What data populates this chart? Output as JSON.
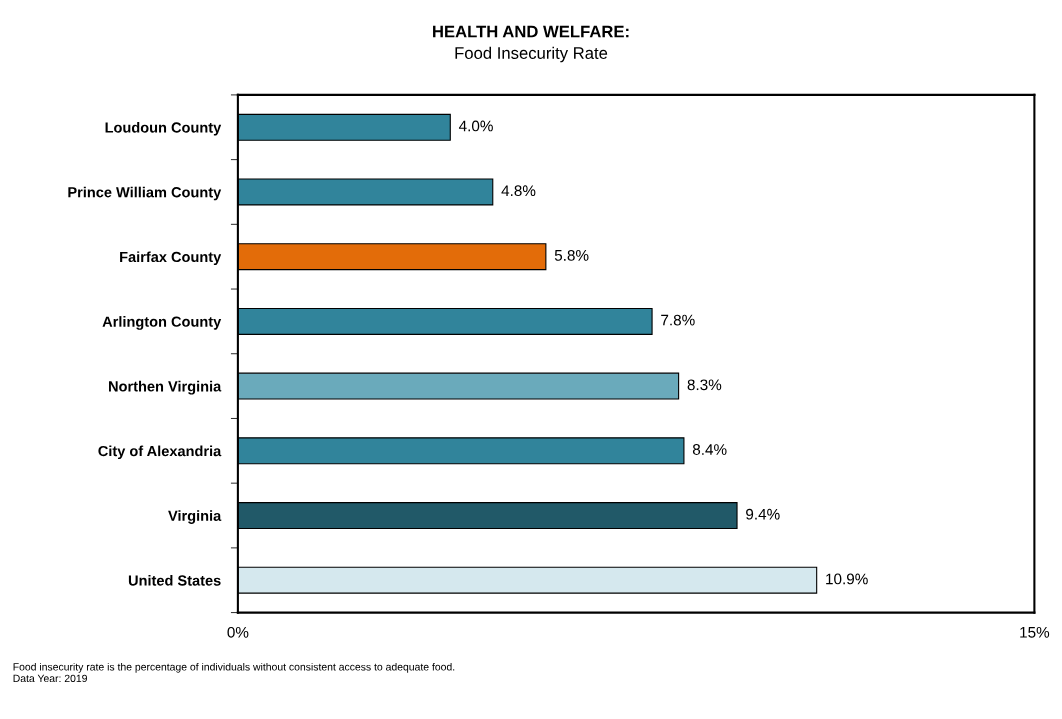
{
  "chart_data": {
    "type": "bar",
    "orientation": "horizontal",
    "title": "HEALTH AND WELFARE:",
    "subtitle": "Food Insecurity Rate",
    "categories": [
      "Loudoun County",
      "Prince William County",
      "Fairfax County",
      "Arlington County",
      "Northen Virginia",
      "City of Alexandria",
      "Virginia",
      "United States"
    ],
    "values": [
      4.0,
      4.8,
      5.8,
      7.8,
      8.3,
      8.4,
      9.4,
      10.9
    ],
    "colors": [
      "#31849b",
      "#31849b",
      "#e36c09",
      "#31849b",
      "#6aaabb",
      "#31849b",
      "#215968",
      "#d5e8ee"
    ],
    "value_labels": [
      "4.0%",
      "4.8%",
      "5.8%",
      "7.8%",
      "8.3%",
      "8.4%",
      "9.4%",
      "10.9%"
    ],
    "xlim": [
      0,
      15
    ],
    "xticks": [
      {
        "value": 0,
        "label": "0%"
      },
      {
        "value": 15,
        "label": "15%"
      }
    ],
    "grid": false,
    "legend": false,
    "annotations": [
      "Food insecurity rate is the percentage of individuals without consistent access to adequate food.",
      "Data Year: 2019"
    ]
  }
}
